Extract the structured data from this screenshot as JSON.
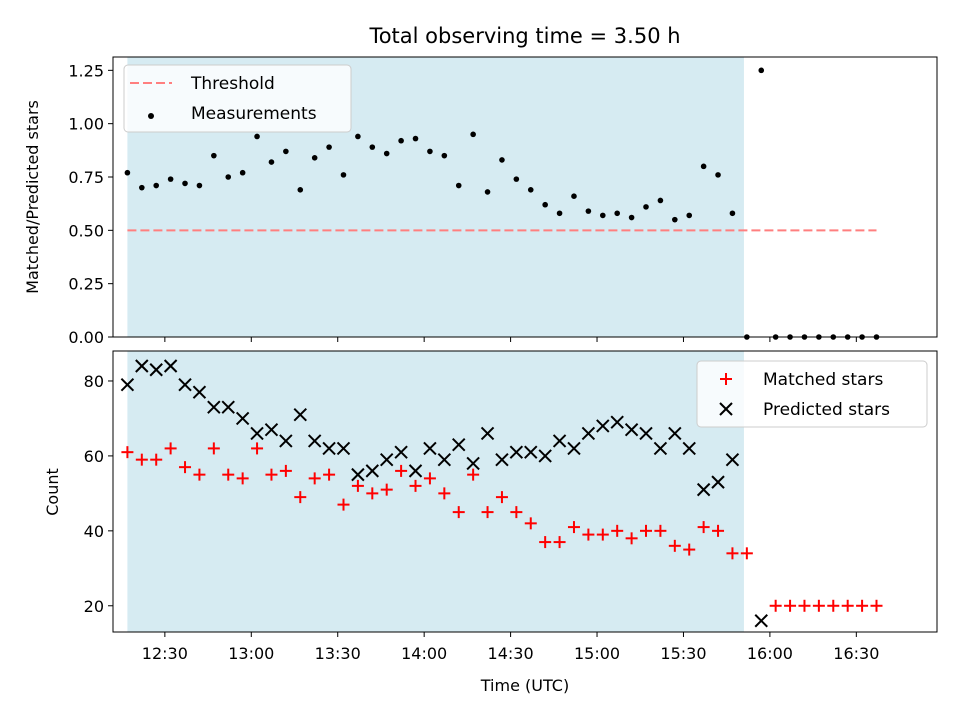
{
  "chart_data": [
    {
      "type": "scatter",
      "title": "Total observing time = 3.50 h",
      "ylabel": "Matched/Predicted stars",
      "xlabel": "",
      "xlim": [
        "12:12",
        "16:58"
      ],
      "ylim": [
        0,
        1.3125
      ],
      "yticks": [
        0,
        0.25,
        0.5,
        0.75,
        1.0,
        1.25
      ],
      "ytick_labels": [
        "0.00",
        "0.25",
        "0.50",
        "0.75",
        "1.00",
        "1.25"
      ],
      "grid": false,
      "legend_position": "top-left",
      "observing_window": [
        "12:17",
        "15:51"
      ],
      "observing_window_color": "#add8e6",
      "threshold": {
        "name": "Threshold",
        "value": 0.5,
        "x": [
          "12:17",
          "16:37"
        ],
        "color": "#ff7f7f",
        "style": "dashed"
      },
      "series": [
        {
          "name": "Measurements",
          "color": "#000000",
          "marker": "dot",
          "x": [
            "12:17",
            "12:22",
            "12:27",
            "12:32",
            "12:37",
            "12:42",
            "12:47",
            "12:52",
            "12:57",
            "13:02",
            "13:07",
            "13:12",
            "13:17",
            "13:22",
            "13:27",
            "13:32",
            "13:37",
            "13:42",
            "13:47",
            "13:52",
            "13:57",
            "14:02",
            "14:07",
            "14:12",
            "14:17",
            "14:22",
            "14:27",
            "14:32",
            "14:37",
            "14:42",
            "14:47",
            "14:52",
            "14:57",
            "15:02",
            "15:07",
            "15:12",
            "15:17",
            "15:22",
            "15:27",
            "15:32",
            "15:37",
            "15:42",
            "15:47",
            "15:52",
            "15:57",
            "16:02",
            "16:07",
            "16:12",
            "16:17",
            "16:22",
            "16:27",
            "16:32",
            "16:37"
          ],
          "y": [
            0.77,
            0.7,
            0.71,
            0.74,
            0.72,
            0.71,
            0.85,
            0.75,
            0.77,
            0.94,
            0.82,
            0.87,
            0.69,
            0.84,
            0.89,
            0.76,
            0.94,
            0.89,
            0.86,
            0.92,
            0.93,
            0.87,
            0.85,
            0.71,
            0.95,
            0.68,
            0.83,
            0.74,
            0.69,
            0.62,
            0.58,
            0.66,
            0.59,
            0.57,
            0.58,
            0.56,
            0.61,
            0.64,
            0.55,
            0.57,
            0.8,
            0.76,
            0.58,
            0.0,
            1.25,
            0.0,
            0.0,
            0.0,
            0.0,
            0.0,
            0.0,
            0.0,
            0.0
          ]
        }
      ]
    },
    {
      "type": "scatter",
      "title": "",
      "ylabel": "Count",
      "xlabel": "Time (UTC)",
      "xlim": [
        "12:12",
        "16:58"
      ],
      "ylim": [
        13,
        88
      ],
      "yticks": [
        20,
        40,
        60,
        80
      ],
      "ytick_labels": [
        "20",
        "40",
        "60",
        "80"
      ],
      "xticks": [
        "12:30",
        "13:00",
        "13:30",
        "14:00",
        "14:30",
        "15:00",
        "15:30",
        "16:00",
        "16:30"
      ],
      "grid": false,
      "legend_position": "top-right",
      "observing_window": [
        "12:17",
        "15:51"
      ],
      "observing_window_color": "#add8e6",
      "x": [
        "12:17",
        "12:22",
        "12:27",
        "12:32",
        "12:37",
        "12:42",
        "12:47",
        "12:52",
        "12:57",
        "13:02",
        "13:07",
        "13:12",
        "13:17",
        "13:22",
        "13:27",
        "13:32",
        "13:37",
        "13:42",
        "13:47",
        "13:52",
        "13:57",
        "14:02",
        "14:07",
        "14:12",
        "14:17",
        "14:22",
        "14:27",
        "14:32",
        "14:37",
        "14:42",
        "14:47",
        "14:52",
        "14:57",
        "15:02",
        "15:07",
        "15:12",
        "15:17",
        "15:22",
        "15:27",
        "15:32",
        "15:37",
        "15:42",
        "15:47",
        "15:52",
        "15:57",
        "16:02",
        "16:07",
        "16:12",
        "16:17",
        "16:22",
        "16:27",
        "16:32",
        "16:37"
      ],
      "series": [
        {
          "name": "Matched stars",
          "color": "#ff0000",
          "marker": "plus",
          "values": [
            61,
            59,
            59,
            62,
            57,
            55,
            62,
            55,
            54,
            62,
            55,
            56,
            49,
            54,
            55,
            47,
            52,
            50,
            51,
            56,
            52,
            54,
            50,
            45,
            55,
            45,
            49,
            45,
            42,
            37,
            37,
            41,
            39,
            39,
            40,
            38,
            40,
            40,
            36,
            35,
            41,
            40,
            34,
            34,
            null,
            20,
            20,
            20,
            20,
            20,
            20,
            20,
            20
          ]
        },
        {
          "name": "Predicted stars",
          "color": "#000000",
          "marker": "x",
          "values": [
            79,
            84,
            83,
            84,
            79,
            77,
            73,
            73,
            70,
            66,
            67,
            64,
            71,
            64,
            62,
            62,
            55,
            56,
            59,
            61,
            56,
            62,
            59,
            63,
            58,
            66,
            59,
            61,
            61,
            60,
            64,
            62,
            66,
            68,
            69,
            67,
            66,
            62,
            66,
            62,
            51,
            53,
            59,
            null,
            16,
            null,
            null,
            null,
            null,
            null,
            null,
            null,
            null
          ]
        }
      ]
    }
  ]
}
